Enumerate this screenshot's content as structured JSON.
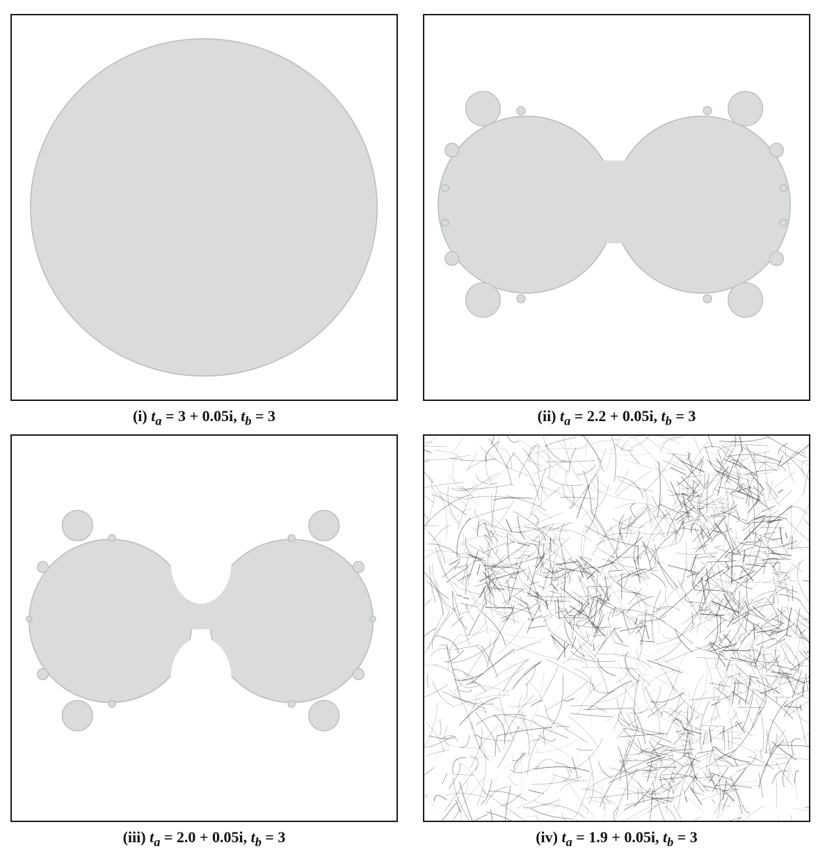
{
  "colors": {
    "fill": "#dadcdc",
    "fill_edge": "#b7bbbb",
    "frame": "#1a1a1a",
    "tangle": "#2a2a2a",
    "background": "#ffffff"
  },
  "panels": [
    {
      "id": "i",
      "caption": "(i) tₐ = 3 + 0.05i, tᵦ = 3",
      "caption_prefix": "(i)",
      "caption_a": "t",
      "caption_a_sub": "a",
      "caption_a_value": "3 + 0.05i,",
      "caption_b": "t",
      "caption_b_sub": "b",
      "caption_b_value": "3",
      "shape": "disk"
    },
    {
      "id": "ii",
      "caption_prefix": "(ii)",
      "caption_a": "t",
      "caption_a_sub": "a",
      "caption_a_value": "2.2 + 0.05i,",
      "caption_b": "t",
      "caption_b_sub": "b",
      "caption_b_value": "3",
      "shape": "pinched-double-disk"
    },
    {
      "id": "iii",
      "caption_prefix": "(iii)",
      "caption_a": "t",
      "caption_a_sub": "a",
      "caption_a_value": "2.0 + 0.05i,",
      "caption_b": "t",
      "caption_b_sub": "b",
      "caption_b_value": "3",
      "shape": "cusped-double-disk"
    },
    {
      "id": "iv",
      "caption_prefix": "(iv)",
      "caption_a": "t",
      "caption_a_sub": "a",
      "caption_a_value": "1.9 + 0.05i,",
      "caption_b": "t",
      "caption_b_sub": "b",
      "caption_b_value": "3",
      "shape": "chaotic-tangle"
    }
  ]
}
